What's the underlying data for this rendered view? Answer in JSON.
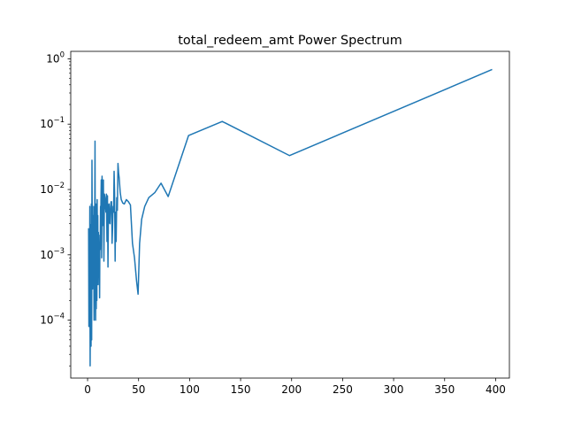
{
  "chart_data": {
    "type": "line",
    "title": "total_redeem_amt Power Spectrum",
    "xlabel": "",
    "ylabel": "",
    "xlim": [
      -16.5,
      413.5
    ],
    "ylim": [
      1.3e-05,
      1.3
    ],
    "y_scale": "log",
    "grid": false,
    "line_color": "#1f77b4",
    "x_ticks": [
      0,
      50,
      100,
      150,
      200,
      250,
      300,
      350,
      400
    ],
    "x_tick_labels": [
      "0",
      "50",
      "100",
      "150",
      "200",
      "250",
      "300",
      "350",
      "400"
    ],
    "y_ticks": [
      0.0001,
      0.001,
      0.01,
      0.1,
      1
    ],
    "y_tick_labels": [
      {
        "base": "10",
        "exp": "−4"
      },
      {
        "base": "10",
        "exp": "−3"
      },
      {
        "base": "10",
        "exp": "−2"
      },
      {
        "base": "10",
        "exp": "−1"
      },
      {
        "base": "10",
        "exp": "0"
      }
    ],
    "series": [
      {
        "x": [
          1.0,
          1.3,
          1.6,
          1.9,
          2.2,
          2.5,
          2.8,
          3.1,
          3.4,
          3.7,
          4.0,
          4.3,
          4.6,
          4.9,
          5.2,
          5.5,
          5.8,
          6.1,
          6.4,
          6.7,
          7.0,
          7.3,
          7.6,
          7.9,
          8.2,
          8.5,
          8.8,
          9.1,
          9.4,
          9.7,
          10.0,
          10.3,
          10.6,
          10.9,
          11.2,
          11.5,
          11.8,
          12.1,
          12.4,
          12.7,
          13.0,
          13.4,
          13.8,
          14.2,
          14.6,
          15.0,
          15.5,
          16.0,
          16.5,
          17.0,
          17.5,
          18.0,
          18.5,
          19.0,
          19.5,
          20.0,
          20.5,
          21.0,
          21.5,
          22.0,
          22.5,
          23.0,
          23.5,
          24.0,
          24.5,
          25.0,
          25.5,
          26.0,
          26.5,
          27.0,
          27.5,
          28.0,
          28.6,
          29.2,
          29.8,
          30.4,
          31.0,
          32.0,
          33.0,
          34.5,
          36.0,
          38.0,
          40.0,
          42.0,
          44.0,
          46.0,
          48.0,
          49.5,
          51.0,
          53.0,
          56.0,
          60.0,
          66.0,
          72.0,
          79.0,
          99.0,
          132.0,
          198.0,
          396.0
        ],
        "y": [
          0.0025,
          8e-05,
          0.0009,
          0.00015,
          0.0055,
          2e-05,
          0.0002,
          0.0029,
          4e-05,
          0.006,
          5e-05,
          0.028,
          0.0025,
          0.0003,
          0.0055,
          0.00045,
          0.004,
          0.0007,
          0.0001,
          0.0055,
          0.003,
          0.055,
          0.0004,
          0.0001,
          0.006,
          0.00015,
          0.0045,
          0.0002,
          0.007,
          0.0008,
          0.004,
          0.00035,
          0.0022,
          0.0012,
          0.00045,
          0.0009,
          0.00022,
          0.002,
          0.0012,
          0.0055,
          0.0048,
          0.014,
          0.0009,
          0.016,
          0.0028,
          0.0065,
          0.014,
          0.0008,
          0.0085,
          0.0075,
          0.0055,
          0.0045,
          0.0085,
          0.0016,
          0.008,
          0.00065,
          0.0055,
          0.006,
          0.0031,
          0.003,
          0.0055,
          0.0065,
          0.0065,
          0.0015,
          0.0025,
          0.0055,
          0.0045,
          0.019,
          0.0085,
          0.0008,
          0.0045,
          0.0016,
          0.0075,
          0.0048,
          0.025,
          0.018,
          0.015,
          0.009,
          0.007,
          0.0062,
          0.006,
          0.007,
          0.0065,
          0.0058,
          0.0015,
          0.0009,
          0.0004,
          0.00025,
          0.0015,
          0.0035,
          0.0055,
          0.0075,
          0.009,
          0.0125,
          0.0078,
          0.067,
          0.11,
          0.033,
          0.68
        ]
      }
    ]
  }
}
